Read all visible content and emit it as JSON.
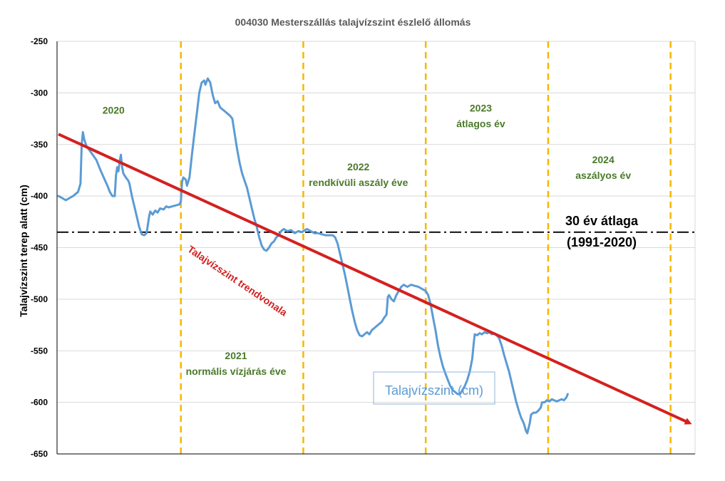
{
  "chart_data": {
    "type": "line",
    "title": "004030 Mesterszállás talajvízszint észlelő állomás",
    "ylabel": "Talajvízszint terep alatt (cm)",
    "ylim": [
      -650,
      -250
    ],
    "yticks": [
      -250,
      -300,
      -350,
      -400,
      -450,
      -500,
      -550,
      -600,
      -650
    ],
    "xlim": [
      0,
      5.2
    ],
    "grid": "horizontal",
    "colors": {
      "series": "#5b9bd5",
      "trend": "#d42020",
      "year_boundary": "#f5b800",
      "average": "#000000",
      "annotation_text": "#4a7a2a"
    },
    "year_boundaries": [
      1,
      2,
      3,
      4,
      5
    ],
    "year_annotations": [
      {
        "lines": [
          "2020"
        ],
        "x": 0.45,
        "y": -320
      },
      {
        "lines": [
          "2021",
          "normális vízjárás éve"
        ],
        "x": 1.45,
        "y": -558
      },
      {
        "lines": [
          "2022",
          "rendkívüli aszály éve"
        ],
        "x": 2.45,
        "y": -375
      },
      {
        "lines": [
          "2023",
          "átlagos év"
        ],
        "x": 3.45,
        "y": -318
      },
      {
        "lines": [
          "2024",
          "aszályos év"
        ],
        "x": 4.45,
        "y": -368
      }
    ],
    "average": {
      "value": -435,
      "label_lines": [
        "30 év átlaga",
        "(1991-2020)"
      ]
    },
    "trend": {
      "label": "Talajvízszint trendvonala",
      "x": [
        0,
        5.2
      ],
      "y": [
        -340,
        -620
      ]
    },
    "series": [
      {
        "name": "Talajvízszint (cm)",
        "points": [
          [
            0.0,
            -400
          ],
          [
            0.03,
            -402
          ],
          [
            0.06,
            -404
          ],
          [
            0.09,
            -402
          ],
          [
            0.12,
            -400
          ],
          [
            0.14,
            -398
          ],
          [
            0.16,
            -396
          ],
          [
            0.18,
            -388
          ],
          [
            0.19,
            -350
          ],
          [
            0.2,
            -338
          ],
          [
            0.21,
            -345
          ],
          [
            0.23,
            -352
          ],
          [
            0.25,
            -355
          ],
          [
            0.28,
            -360
          ],
          [
            0.31,
            -365
          ],
          [
            0.34,
            -374
          ],
          [
            0.37,
            -382
          ],
          [
            0.4,
            -390
          ],
          [
            0.42,
            -396
          ],
          [
            0.44,
            -400
          ],
          [
            0.46,
            -400
          ],
          [
            0.47,
            -380
          ],
          [
            0.48,
            -372
          ],
          [
            0.49,
            -376
          ],
          [
            0.5,
            -366
          ],
          [
            0.51,
            -360
          ],
          [
            0.52,
            -372
          ],
          [
            0.53,
            -378
          ],
          [
            0.55,
            -382
          ],
          [
            0.57,
            -385
          ],
          [
            0.58,
            -388
          ],
          [
            0.6,
            -400
          ],
          [
            0.62,
            -410
          ],
          [
            0.64,
            -420
          ],
          [
            0.66,
            -430
          ],
          [
            0.68,
            -437
          ],
          [
            0.7,
            -438
          ],
          [
            0.72,
            -436
          ],
          [
            0.73,
            -428
          ],
          [
            0.74,
            -420
          ],
          [
            0.75,
            -415
          ],
          [
            0.77,
            -418
          ],
          [
            0.79,
            -414
          ],
          [
            0.81,
            -416
          ],
          [
            0.83,
            -412
          ],
          [
            0.86,
            -413
          ],
          [
            0.88,
            -410
          ],
          [
            0.9,
            -411
          ],
          [
            0.93,
            -410
          ],
          [
            0.96,
            -409
          ],
          [
            0.99,
            -408
          ],
          [
            1.0,
            -405
          ],
          [
            1.01,
            -386
          ],
          [
            1.02,
            -382
          ],
          [
            1.04,
            -384
          ],
          [
            1.05,
            -390
          ],
          [
            1.07,
            -382
          ],
          [
            1.09,
            -360
          ],
          [
            1.11,
            -340
          ],
          [
            1.13,
            -320
          ],
          [
            1.15,
            -300
          ],
          [
            1.17,
            -290
          ],
          [
            1.19,
            -288
          ],
          [
            1.2,
            -292
          ],
          [
            1.22,
            -286
          ],
          [
            1.24,
            -290
          ],
          [
            1.26,
            -302
          ],
          [
            1.28,
            -310
          ],
          [
            1.3,
            -308
          ],
          [
            1.32,
            -314
          ],
          [
            1.34,
            -316
          ],
          [
            1.36,
            -318
          ],
          [
            1.38,
            -320
          ],
          [
            1.4,
            -322
          ],
          [
            1.42,
            -325
          ],
          [
            1.44,
            -340
          ],
          [
            1.46,
            -355
          ],
          [
            1.48,
            -368
          ],
          [
            1.5,
            -378
          ],
          [
            1.52,
            -385
          ],
          [
            1.54,
            -392
          ],
          [
            1.56,
            -402
          ],
          [
            1.58,
            -412
          ],
          [
            1.6,
            -422
          ],
          [
            1.62,
            -430
          ],
          [
            1.64,
            -440
          ],
          [
            1.66,
            -448
          ],
          [
            1.68,
            -452
          ],
          [
            1.7,
            -453
          ],
          [
            1.72,
            -450
          ],
          [
            1.74,
            -446
          ],
          [
            1.76,
            -444
          ],
          [
            1.78,
            -440
          ],
          [
            1.8,
            -438
          ],
          [
            1.82,
            -434
          ],
          [
            1.84,
            -432
          ],
          [
            1.87,
            -434
          ],
          [
            1.9,
            -433
          ],
          [
            1.93,
            -436
          ],
          [
            1.96,
            -434
          ],
          [
            1.99,
            -435
          ],
          [
            2.0,
            -434
          ],
          [
            2.03,
            -432
          ],
          [
            2.06,
            -434
          ],
          [
            2.09,
            -436
          ],
          [
            2.12,
            -436
          ],
          [
            2.15,
            -437
          ],
          [
            2.18,
            -438
          ],
          [
            2.21,
            -438
          ],
          [
            2.24,
            -438
          ],
          [
            2.26,
            -440
          ],
          [
            2.28,
            -446
          ],
          [
            2.3,
            -456
          ],
          [
            2.32,
            -466
          ],
          [
            2.34,
            -476
          ],
          [
            2.36,
            -488
          ],
          [
            2.38,
            -500
          ],
          [
            2.4,
            -512
          ],
          [
            2.42,
            -522
          ],
          [
            2.44,
            -530
          ],
          [
            2.46,
            -535
          ],
          [
            2.48,
            -536
          ],
          [
            2.5,
            -534
          ],
          [
            2.52,
            -532
          ],
          [
            2.54,
            -534
          ],
          [
            2.56,
            -530
          ],
          [
            2.58,
            -528
          ],
          [
            2.6,
            -526
          ],
          [
            2.62,
            -524
          ],
          [
            2.64,
            -522
          ],
          [
            2.66,
            -518
          ],
          [
            2.68,
            -515
          ],
          [
            2.69,
            -498
          ],
          [
            2.7,
            -496
          ],
          [
            2.72,
            -500
          ],
          [
            2.74,
            -502
          ],
          [
            2.76,
            -496
          ],
          [
            2.78,
            -492
          ],
          [
            2.8,
            -488
          ],
          [
            2.82,
            -486
          ],
          [
            2.85,
            -488
          ],
          [
            2.88,
            -486
          ],
          [
            2.91,
            -487
          ],
          [
            2.94,
            -488
          ],
          [
            2.97,
            -490
          ],
          [
            3.0,
            -492
          ],
          [
            3.02,
            -496
          ],
          [
            3.04,
            -505
          ],
          [
            3.06,
            -518
          ],
          [
            3.08,
            -530
          ],
          [
            3.1,
            -545
          ],
          [
            3.12,
            -556
          ],
          [
            3.14,
            -565
          ],
          [
            3.16,
            -572
          ],
          [
            3.18,
            -578
          ],
          [
            3.2,
            -584
          ],
          [
            3.22,
            -588
          ],
          [
            3.24,
            -590
          ],
          [
            3.26,
            -592
          ],
          [
            3.28,
            -592
          ],
          [
            3.3,
            -588
          ],
          [
            3.32,
            -584
          ],
          [
            3.34,
            -578
          ],
          [
            3.36,
            -570
          ],
          [
            3.38,
            -558
          ],
          [
            3.39,
            -545
          ],
          [
            3.4,
            -534
          ],
          [
            3.42,
            -535
          ],
          [
            3.44,
            -533
          ],
          [
            3.46,
            -534
          ],
          [
            3.48,
            -532
          ],
          [
            3.5,
            -533
          ],
          [
            3.52,
            -532
          ],
          [
            3.54,
            -534
          ],
          [
            3.56,
            -533
          ],
          [
            3.58,
            -535
          ],
          [
            3.6,
            -538
          ],
          [
            3.62,
            -545
          ],
          [
            3.64,
            -554
          ],
          [
            3.66,
            -562
          ],
          [
            3.68,
            -570
          ],
          [
            3.7,
            -580
          ],
          [
            3.72,
            -590
          ],
          [
            3.74,
            -600
          ],
          [
            3.76,
            -608
          ],
          [
            3.78,
            -615
          ],
          [
            3.8,
            -620
          ],
          [
            3.82,
            -628
          ],
          [
            3.83,
            -630
          ],
          [
            3.84,
            -625
          ],
          [
            3.85,
            -620
          ],
          [
            3.86,
            -612
          ],
          [
            3.88,
            -610
          ],
          [
            3.9,
            -610
          ],
          [
            3.92,
            -608
          ],
          [
            3.94,
            -605
          ],
          [
            3.95,
            -600
          ],
          [
            3.97,
            -600
          ],
          [
            3.99,
            -598
          ],
          [
            4.01,
            -599
          ],
          [
            4.03,
            -597
          ],
          [
            4.05,
            -598
          ],
          [
            4.07,
            -599
          ],
          [
            4.09,
            -598
          ],
          [
            4.11,
            -597
          ],
          [
            4.13,
            -598
          ],
          [
            4.15,
            -595
          ],
          [
            4.16,
            -592
          ]
        ]
      }
    ]
  }
}
